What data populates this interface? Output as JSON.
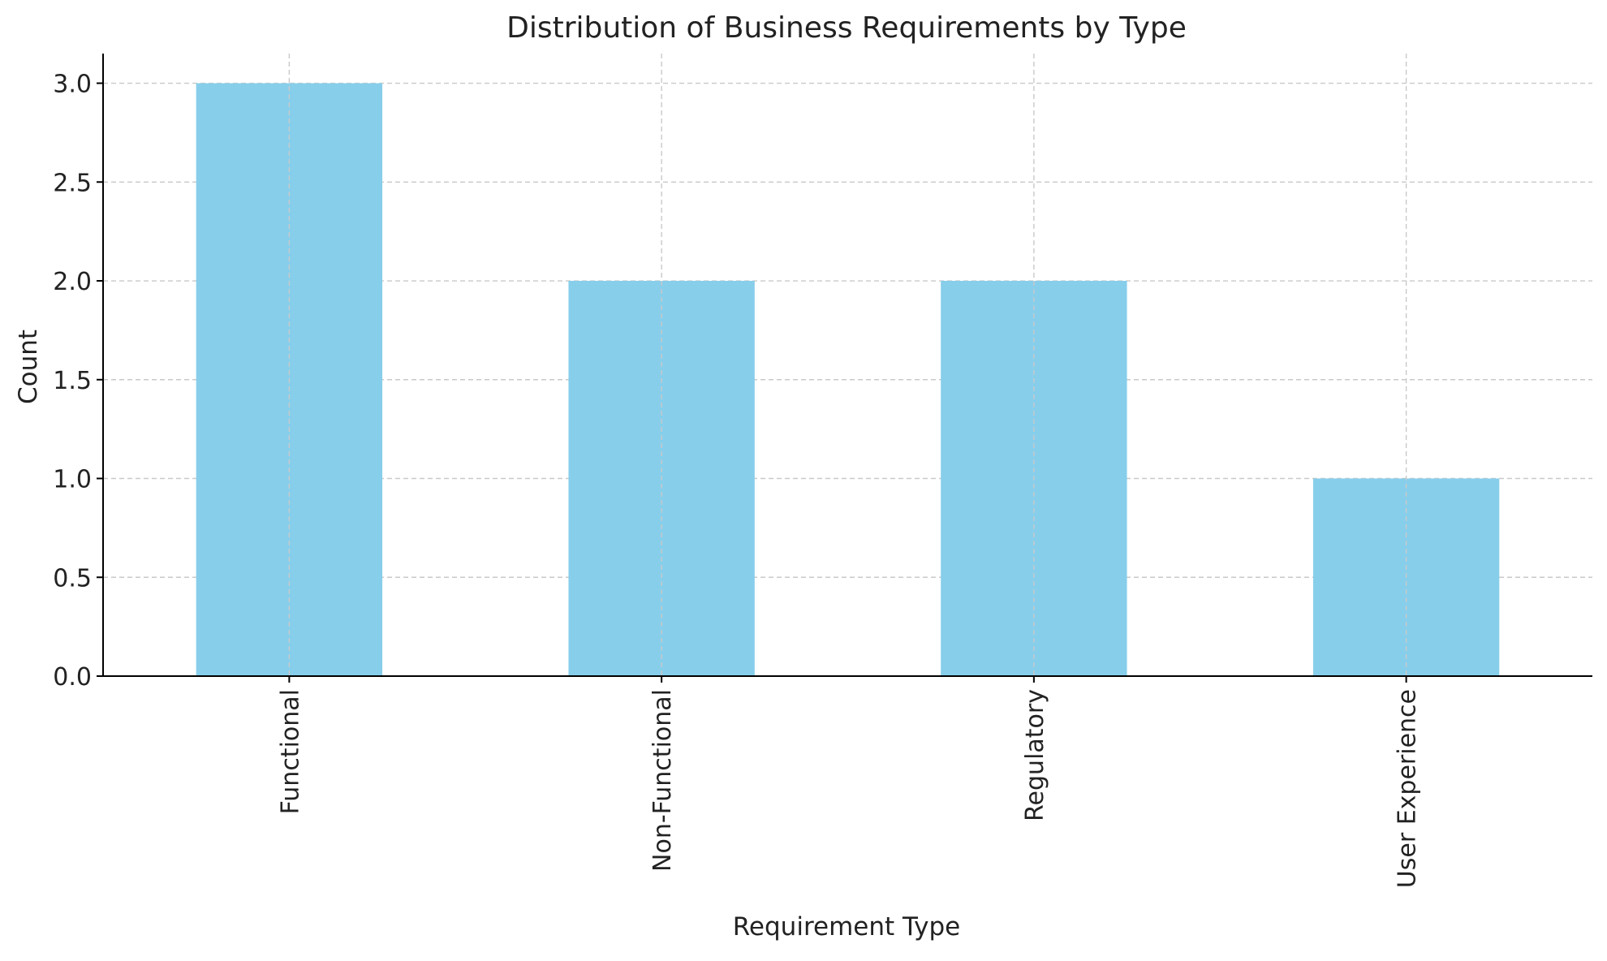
{
  "chart_data": {
    "type": "bar",
    "title": "Distribution of Business Requirements by Type",
    "xlabel": "Requirement Type",
    "ylabel": "Count",
    "categories": [
      "Functional",
      "Non-Functional",
      "Regulatory",
      "User Experience"
    ],
    "values": [
      3,
      2,
      2,
      1
    ],
    "ylim": [
      0,
      3.15
    ],
    "yticks": [
      "0.0",
      "0.5",
      "1.0",
      "1.5",
      "2.0",
      "2.5",
      "3.0"
    ],
    "grid": true,
    "bar_color": "#87CEEB",
    "grid_color": "#c9c9c9",
    "axis_color": "#000000"
  }
}
